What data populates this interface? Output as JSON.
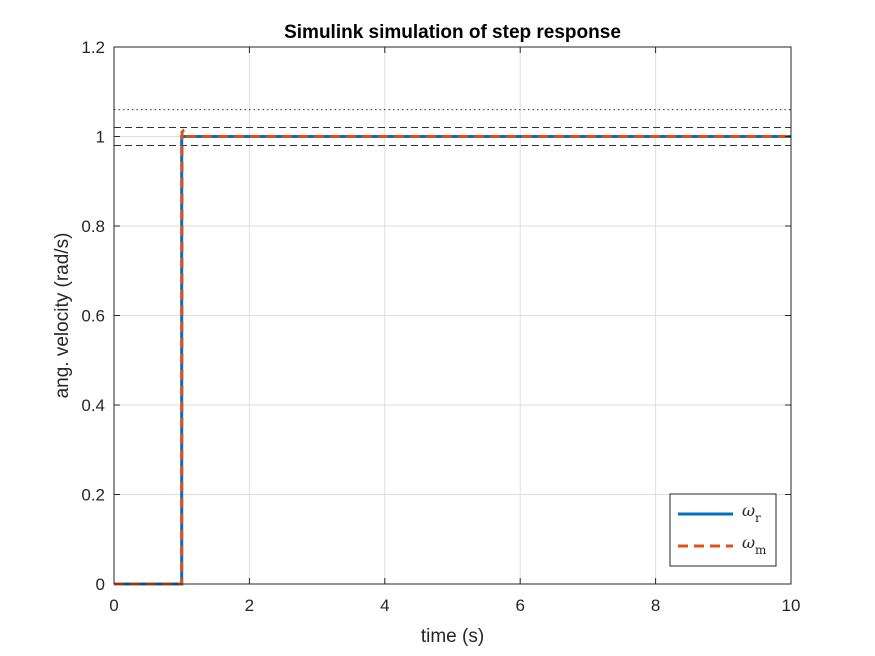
{
  "chart_data": {
    "type": "line",
    "title": "Simulink simulation of step response",
    "xlabel": "time (s)",
    "ylabel": "ang. velocity (rad/s)",
    "xlim": [
      0,
      10
    ],
    "ylim": [
      0,
      1.2
    ],
    "xticks": [
      0,
      2,
      4,
      6,
      8,
      10
    ],
    "xtick_labels": [
      "0",
      "2",
      "4",
      "6",
      "8",
      "10"
    ],
    "yticks": [
      0,
      0.2,
      0.4,
      0.6,
      0.8,
      1,
      1.2
    ],
    "ytick_labels": [
      "0",
      "0.2",
      "0.4",
      "0.6",
      "0.8",
      "1",
      "1.2"
    ],
    "grid": true,
    "legend_position": "bottom-right",
    "series": [
      {
        "name": "ωr",
        "legend_base": "ω",
        "legend_sub": "r",
        "color": "#0072BD",
        "style": "solid",
        "x": [
          0,
          1,
          1,
          1.03,
          1.03,
          10
        ],
        "y": [
          0,
          0,
          1,
          1,
          1,
          1
        ]
      },
      {
        "name": "ωm",
        "legend_base": "ω",
        "legend_sub": "m",
        "color": "#D95319",
        "style": "dashed",
        "x": [
          0,
          1,
          1.005,
          1.02,
          1.04,
          1.06,
          10
        ],
        "y": [
          0,
          0,
          1.01,
          1.012,
          1.0,
          1.0,
          1.0
        ]
      }
    ],
    "reference_lines": [
      {
        "y": 1.06,
        "style": "dotted",
        "color": "#333333"
      },
      {
        "y": 1.02,
        "style": "dashed",
        "color": "#333333"
      },
      {
        "y": 0.98,
        "style": "dashed",
        "color": "#333333"
      }
    ]
  }
}
